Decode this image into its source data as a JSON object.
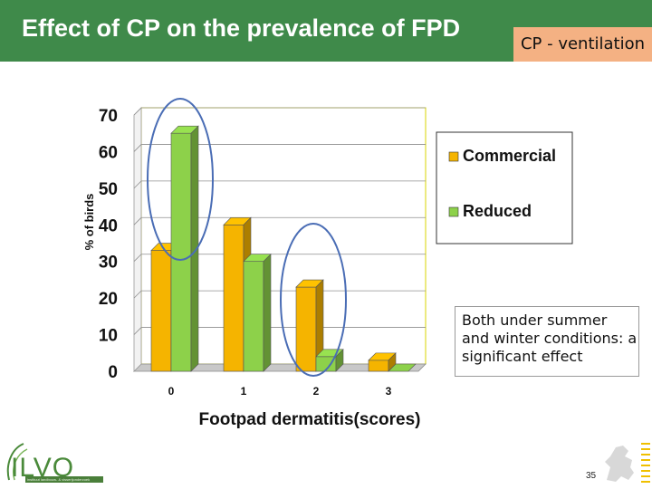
{
  "slide": {
    "title": "Effect of CP on the prevalence of FPD",
    "tag": "CP - ventilation",
    "note": "Both under summer and winter conditions: a significant effect",
    "page_number": "35"
  },
  "logo": {
    "text": "ILVO",
    "subtitle": "instituut landbouw- & visserijonderzoek"
  },
  "colors": {
    "title_bar": "#3f8a4a",
    "tag_bg": "#f4b183",
    "commercial": "#f5b400",
    "reduced": "#8dd14a",
    "ellipse": "#4a6db5"
  },
  "chart_data": {
    "type": "bar",
    "categories": [
      "0",
      "1",
      "2",
      "3"
    ],
    "series": [
      {
        "name": "Commercial",
        "values": [
          33,
          40,
          23,
          3
        ]
      },
      {
        "name": "Reduced",
        "values": [
          65,
          30,
          4,
          0
        ]
      }
    ],
    "xlabel": "Footpad dermatitis(scores)",
    "ylabel": "% of birds",
    "ylim": [
      0,
      70
    ],
    "yticks": [
      "0",
      "10",
      "20",
      "30",
      "40",
      "50",
      "60",
      "70"
    ],
    "grid": true,
    "legend_position": "right",
    "style": "3d-bar"
  }
}
